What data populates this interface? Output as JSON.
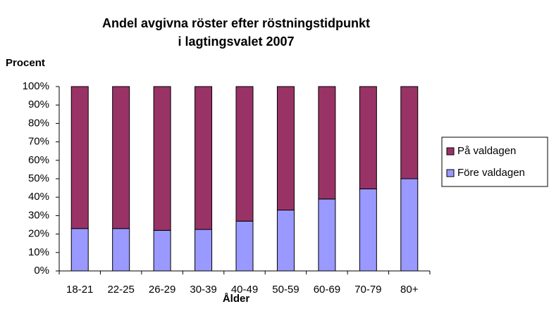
{
  "chart_data": {
    "type": "stacked_bar",
    "title": [
      "Andel avgivna röster efter röstningstidpunkt",
      "i lagtingsvalet 2007"
    ],
    "y_label": "Procent",
    "x_label": "Ålder",
    "categories": [
      "18-21",
      "22-25",
      "26-29",
      "30-39",
      "40-49",
      "50-59",
      "60-69",
      "70-79",
      "80+"
    ],
    "series": [
      {
        "name": "Före valdagen",
        "color": "#9999ff",
        "values": [
          23,
          23,
          22,
          22.5,
          27,
          33,
          39,
          44.5,
          50
        ]
      },
      {
        "name": "På valdagen",
        "color": "#993366",
        "values": [
          77,
          77,
          78,
          77.5,
          73,
          67,
          61,
          55.5,
          50
        ]
      }
    ],
    "ylim": [
      0,
      100
    ],
    "yticks": [
      {
        "value": 0,
        "label": "0%"
      },
      {
        "value": 10,
        "label": "10%"
      },
      {
        "value": 20,
        "label": "20%"
      },
      {
        "value": 30,
        "label": "30%"
      },
      {
        "value": 40,
        "label": "40%"
      },
      {
        "value": 50,
        "label": "50%"
      },
      {
        "value": 60,
        "label": "60%"
      },
      {
        "value": 70,
        "label": "70%"
      },
      {
        "value": 80,
        "label": "80%"
      },
      {
        "value": 90,
        "label": "90%"
      },
      {
        "value": 100,
        "label": "100%"
      }
    ],
    "legend": "right",
    "grid": false
  }
}
